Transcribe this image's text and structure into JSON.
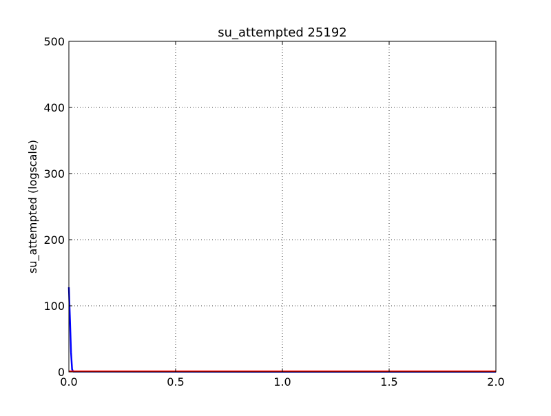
{
  "chart_data": {
    "type": "line",
    "title": "su_attempted 25192",
    "xlabel": "",
    "ylabel": "su_attempted (logscale)",
    "xlim": [
      0,
      2
    ],
    "ylim": [
      0,
      500
    ],
    "xticks": [
      0,
      0.5,
      1,
      1.5,
      2
    ],
    "xtick_labels": [
      "0.0",
      "0.5",
      "1.0",
      "1.5",
      "2.0"
    ],
    "yticks": [
      0,
      100,
      200,
      300,
      400,
      500
    ],
    "ytick_labels": [
      "0",
      "100",
      "200",
      "300",
      "400",
      "500"
    ],
    "grid": true,
    "legend": "none",
    "series": [
      {
        "color": "#0000ff",
        "x": [
          0.0,
          0.005,
          0.01,
          0.015,
          0.02,
          1.0,
          2.0
        ],
        "y": [
          128,
          80,
          30,
          4,
          0.5,
          0.3,
          0.3
        ]
      },
      {
        "color": "#ff0000",
        "x": [
          0.0,
          0.5,
          1.0,
          1.5,
          2.0
        ],
        "y": [
          0.8,
          0.8,
          0.8,
          0.8,
          0.8
        ]
      }
    ]
  }
}
